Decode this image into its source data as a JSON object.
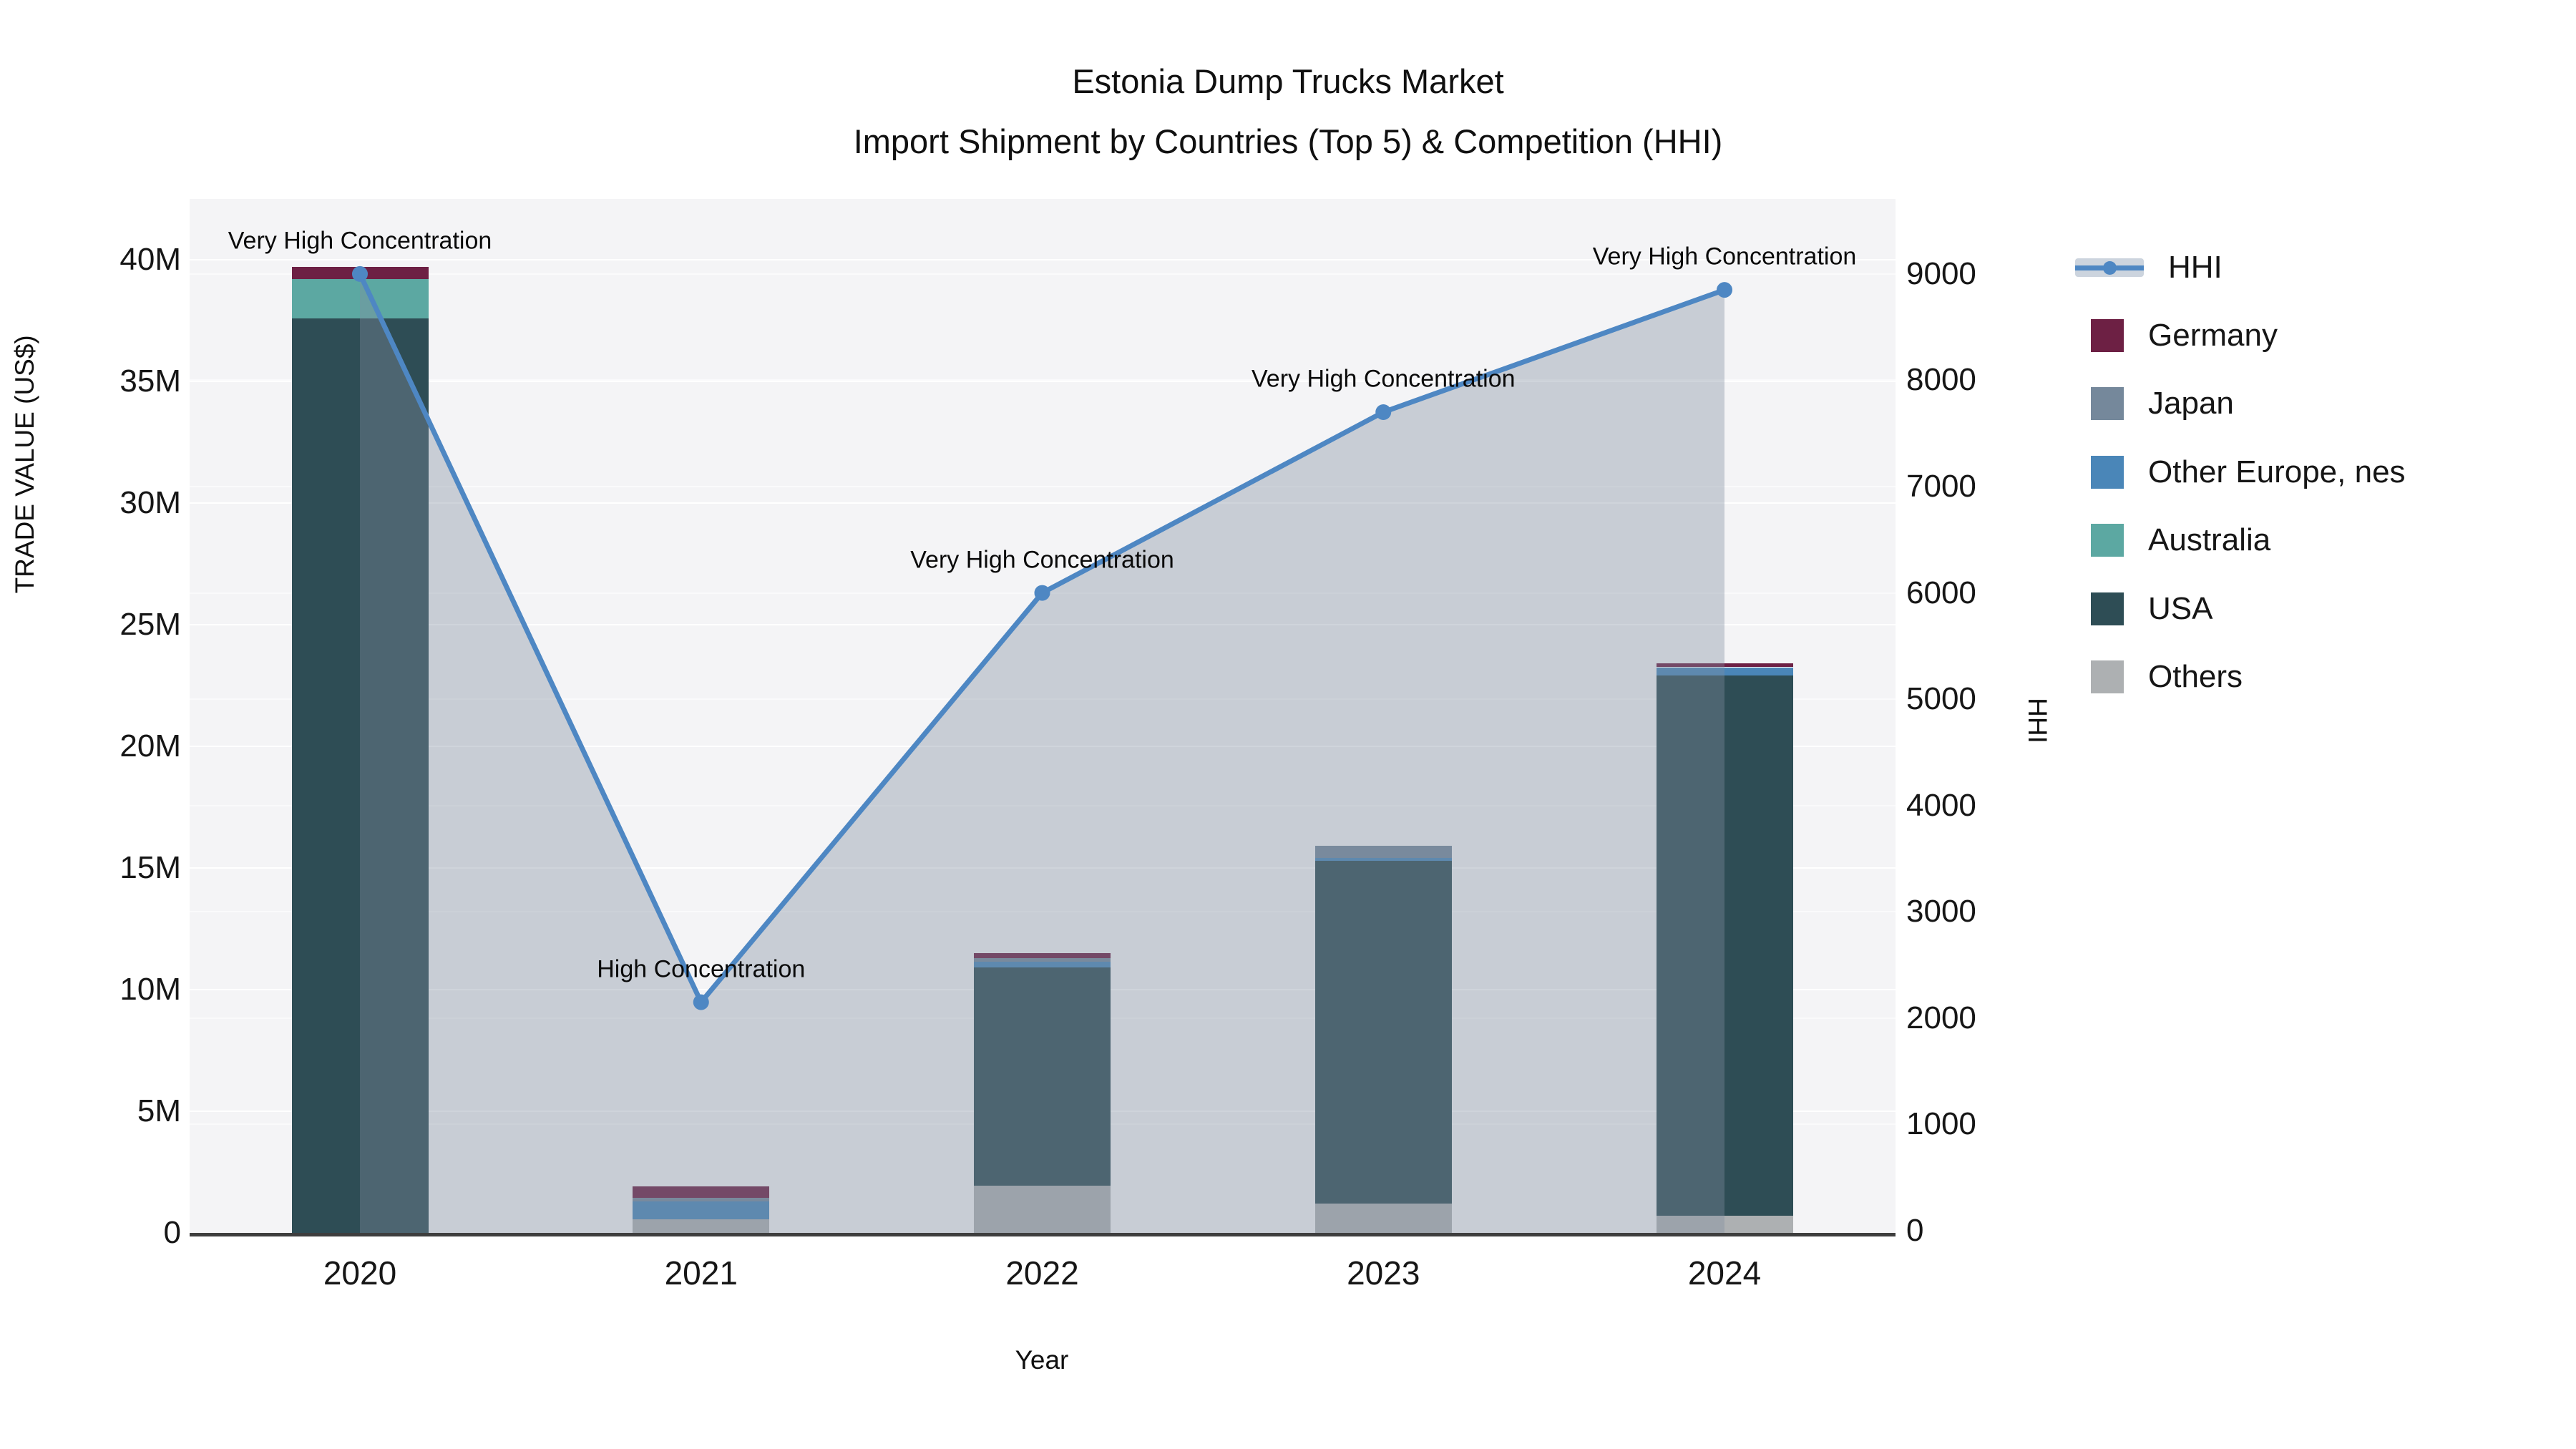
{
  "title": {
    "line1": "Estonia Dump Trucks Market",
    "line2": "Import Shipment by Countries (Top 5) & Competition (HHI)"
  },
  "axes": {
    "left": {
      "title": "TRADE VALUE (US$)",
      "ticks": [
        "0",
        "5M",
        "10M",
        "15M",
        "20M",
        "25M",
        "30M",
        "35M",
        "40M"
      ],
      "tick_values": [
        0,
        5,
        10,
        15,
        20,
        25,
        30,
        35,
        40
      ]
    },
    "right": {
      "title": "HHI",
      "ticks": [
        "0",
        "1000",
        "2000",
        "3000",
        "4000",
        "5000",
        "6000",
        "7000",
        "8000",
        "9000"
      ],
      "tick_values": [
        0,
        1000,
        2000,
        3000,
        4000,
        5000,
        6000,
        7000,
        8000,
        9000
      ]
    },
    "x": {
      "title": "Year",
      "categories": [
        "2020",
        "2021",
        "2022",
        "2023",
        "2024"
      ]
    }
  },
  "legend": {
    "items": [
      {
        "label": "HHI",
        "type": "line",
        "color": "#4e87c3"
      },
      {
        "label": "Germany",
        "type": "square",
        "color": "#6d2044"
      },
      {
        "label": "Japan",
        "type": "square",
        "color": "#75889b"
      },
      {
        "label": "Other Europe, nes",
        "type": "square",
        "color": "#4a86b8"
      },
      {
        "label": "Australia",
        "type": "square",
        "color": "#5ca8a2"
      },
      {
        "label": "USA",
        "type": "square",
        "color": "#2e4d55"
      },
      {
        "label": "Others",
        "type": "square",
        "color": "#adb0b2"
      }
    ]
  },
  "chart_data": {
    "type": "bar",
    "subtype": "stacked-bars-with-line-overlay",
    "title": "Estonia Dump Trucks Market — Import Shipment by Countries (Top 5) & Competition (HHI)",
    "xlabel": "Year",
    "ylabel_left": "TRADE VALUE (US$)",
    "ylabel_right": "HHI",
    "categories": [
      "2020",
      "2021",
      "2022",
      "2023",
      "2024"
    ],
    "bar_unit": "million US$",
    "ylim_left_millions": [
      0,
      42.4
    ],
    "ylim_right": [
      0,
      9750
    ],
    "grid": "on",
    "legend_position": "right",
    "series": [
      {
        "name": "Others",
        "color": "#adb0b2",
        "values": [
          0,
          0.55,
          1.95,
          1.2,
          0.7
        ]
      },
      {
        "name": "USA",
        "color": "#2e4d55",
        "values": [
          37.6,
          0,
          8.95,
          14.1,
          22.2
        ]
      },
      {
        "name": "Australia",
        "color": "#5ca8a2",
        "values": [
          1.6,
          0,
          0,
          0,
          0
        ]
      },
      {
        "name": "Other Europe, nes",
        "color": "#4a86b8",
        "values": [
          0,
          0.75,
          0.25,
          0.1,
          0.35
        ]
      },
      {
        "name": "Japan",
        "color": "#75889b",
        "values": [
          0,
          0.15,
          0.15,
          0.5,
          0
        ]
      },
      {
        "name": "Germany",
        "color": "#6d2044",
        "values": [
          0.5,
          0.45,
          0.2,
          0,
          0.15
        ]
      }
    ],
    "bar_totals_millions": [
      39.7,
      1.9,
      11.5,
      15.9,
      23.4
    ],
    "line_series": {
      "name": "HHI",
      "axis": "right",
      "color": "#4e87c3",
      "area_fill": "rgba(130,142,160,0.38)",
      "values": [
        9000,
        2150,
        6000,
        7700,
        8850
      ]
    },
    "annotations": [
      {
        "year": "2020",
        "text": "Very High Concentration"
      },
      {
        "year": "2021",
        "text": "High Concentration"
      },
      {
        "year": "2022",
        "text": "Very High Concentration"
      },
      {
        "year": "2023",
        "text": "Very High Concentration"
      },
      {
        "year": "2024",
        "text": "Very High Concentration"
      }
    ]
  },
  "colors": {
    "plot_background": "#f4f4f6",
    "figure_background": "#ffffff",
    "axis_line": "#3e3e3e",
    "hhi_line": "#4e87c3",
    "hhi_area": "rgba(130,142,160,0.38)"
  }
}
